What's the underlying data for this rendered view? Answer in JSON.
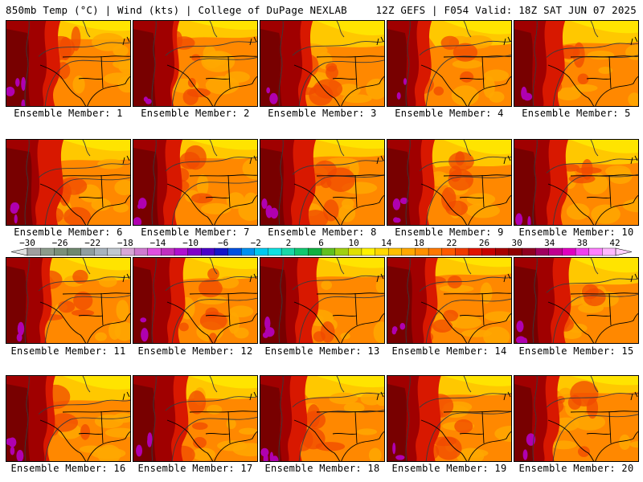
{
  "header": {
    "left": "850mb Temp (°C) | Wind (kts) | College of DuPage NEXLAB",
    "right": "12Z GEFS | F054 Valid: 18Z SAT JUN 07 2025"
  },
  "members": [
    "Ensemble Member: 1",
    "Ensemble Member: 2",
    "Ensemble Member: 3",
    "Ensemble Member: 4",
    "Ensemble Member: 5",
    "Ensemble Member: 6",
    "Ensemble Member: 7",
    "Ensemble Member: 8",
    "Ensemble Member: 9",
    "Ensemble Member: 10",
    "Ensemble Member: 11",
    "Ensemble Member: 12",
    "Ensemble Member: 13",
    "Ensemble Member: 14",
    "Ensemble Member: 15",
    "Ensemble Member: 16",
    "Ensemble Member: 17",
    "Ensemble Member: 18",
    "Ensemble Member: 19",
    "Ensemble Member: 20"
  ],
  "colorbar": {
    "labels": [
      "−30",
      "−26",
      "−22",
      "−18",
      "−14",
      "−10",
      "−6",
      "−2",
      "2",
      "6",
      "10",
      "14",
      "18",
      "22",
      "26",
      "30",
      "34",
      "38",
      "42"
    ],
    "colors": [
      "#a0a0a0",
      "#8c9c8c",
      "#7a907a",
      "#6e886e",
      "#8f9ea0",
      "#a8b4bd",
      "#c0c8d0",
      "#d7a8d7",
      "#d07ad0",
      "#e050e0",
      "#c030c0",
      "#b010d0",
      "#8000c8",
      "#4a00c8",
      "#1414c8",
      "#0050e0",
      "#0090f0",
      "#00c8f0",
      "#10e0e0",
      "#18d8a8",
      "#10c870",
      "#10b040",
      "#60c020",
      "#a0d010",
      "#e0e000",
      "#fff200",
      "#ffd800",
      "#ffc000",
      "#ffa800",
      "#ff9000",
      "#ff7800",
      "#ff5a00",
      "#f03a00",
      "#e01400",
      "#c80000",
      "#a80000",
      "#900000",
      "#900020",
      "#a00060",
      "#c00090",
      "#e000c0",
      "#f040f0",
      "#ff80ff",
      "#ffb8ff"
    ],
    "temp_colors": {
      "hot_purple": "#b000b0",
      "deep_maroon": "#780000",
      "dark_red": "#a00000",
      "red": "#d81800",
      "red_orange": "#f04a00",
      "orange": "#ff8800",
      "light_orange": "#ffa800",
      "yellow_orange": "#ffc800",
      "yellow": "#ffe400"
    }
  }
}
